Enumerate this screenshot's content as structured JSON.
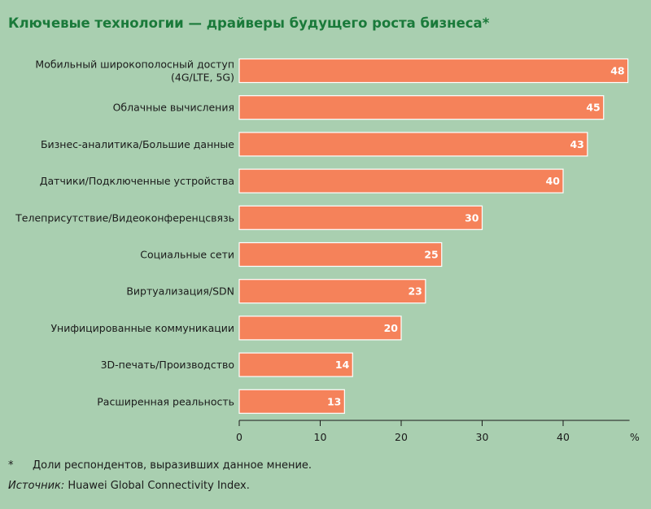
{
  "page": {
    "title": "Ключевые технологии — драйверы будущего роста бизнеса*",
    "footnote_marker": "*",
    "footnote_text": "Доли респондентов, выразивших данное мнение.",
    "source_label": "Источник:",
    "source_text": "Huawei Global Connectivity Index."
  },
  "colors": {
    "background": "#a9cfb0",
    "bar": "#f5825a",
    "bar_stroke": "#ffffff",
    "title": "#1a7a3a"
  },
  "chart_data": {
    "type": "bar",
    "orientation": "horizontal",
    "title": "Ключевые технологии — драйверы будущего роста бизнеса*",
    "xlabel": "",
    "ylabel": "",
    "unit": "%",
    "xlim": [
      0,
      48
    ],
    "xticks": [
      0,
      10,
      20,
      30,
      40
    ],
    "grid": false,
    "categories": [
      [
        "Мобильный широкополосный доступ",
        "(4G/LTE, 5G)"
      ],
      [
        "Облачные вычисления"
      ],
      [
        "Бизнес-аналитика/Большие данные"
      ],
      [
        "Датчики/Подключенные устройства"
      ],
      [
        "Телеприсутствие/Видеоконференцсвязь"
      ],
      [
        "Социальные сети"
      ],
      [
        "Виртуализация/SDN"
      ],
      [
        "Унифицированные коммуникации"
      ],
      [
        "3D-печать/Производство"
      ],
      [
        "Расширенная реальность"
      ]
    ],
    "values": [
      48,
      45,
      43,
      40,
      30,
      25,
      23,
      20,
      14,
      13
    ]
  }
}
